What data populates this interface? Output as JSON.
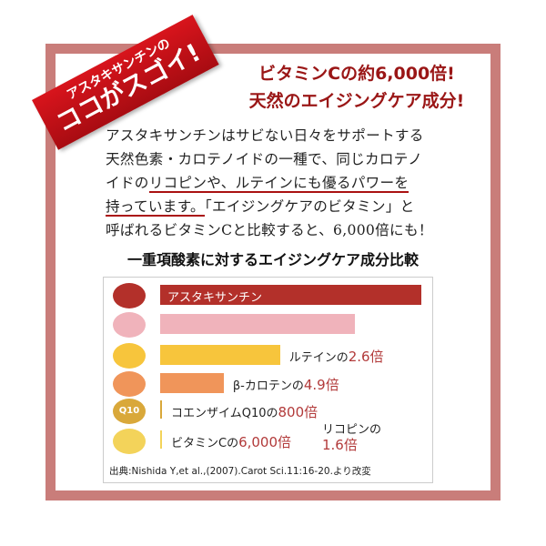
{
  "ribbon": {
    "line1": "アスタキサンチンの",
    "line2": "ココがスゴイ!"
  },
  "headline": {
    "line1": "ビタミンCの約6,000倍!",
    "line2": "天然のエイジングケア成分!"
  },
  "body": {
    "l1": "アスタキサンチンはサビない日々をサポートする",
    "l2": "天然色素・カロテノイドの一種で、同じカロテノ",
    "l3a": "イドの",
    "l3b": "リコピンや、ルテインにも優るパワーを",
    "l4a": "持っています。",
    "l4b": "「エイジングケアのビタミン」と",
    "l5": "呼ばれるビタミンCと比較すると、6,000倍にも！"
  },
  "chart_data": {
    "type": "bar",
    "title": "一重項酸素に対するエイジングケア成分比較",
    "axis_break": true,
    "categories": [
      "アスタキサンチン",
      "リコピン",
      "ルテイン",
      "β-カロテン",
      "コエンザイムQ10",
      "ビタミンC"
    ],
    "ratio_vs_astaxanthin": [
      1,
      1.6,
      2.6,
      4.9,
      800,
      6000
    ],
    "colors": [
      "#b3302a",
      "#f0b3bb",
      "#f7c53c",
      "#f0955a",
      "#d9a83a",
      "#f3d35a"
    ],
    "labels": [
      {
        "name": "アスタキサンチン"
      },
      {
        "name": "リコピンの",
        "value": "1.6倍"
      },
      {
        "name": "ルテインの",
        "value": "2.6倍"
      },
      {
        "name": "β-カロテンの",
        "value": "4.9倍"
      },
      {
        "name": "コエンザイムQ10の",
        "value": "800倍"
      },
      {
        "name": "ビタミンCの",
        "value": "6,000倍"
      }
    ],
    "source": "出典:Nishida Y,et al.,(2007).Carot Sci.11:16-20.より改変"
  },
  "icons": [
    "krill-icon",
    "tomato-icon",
    "marigold-icon",
    "carrot-icon",
    "q10-capsule-icon",
    "lemon-icon"
  ],
  "q10_icon_text": "Q10"
}
